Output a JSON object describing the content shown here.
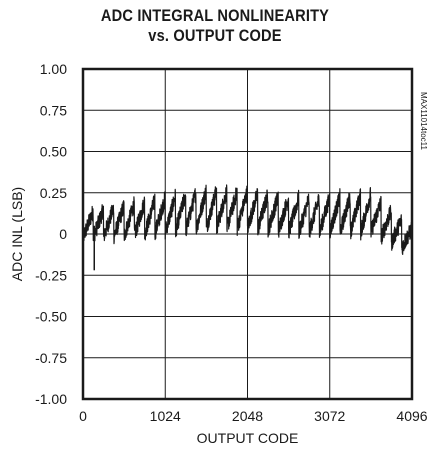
{
  "chart_data": {
    "type": "line",
    "title": [
      "ADC INTEGRAL NONLINEARITY",
      "vs. OUTPUT CODE"
    ],
    "xlabel": "OUTPUT CODE",
    "ylabel": "ADC INL (LSB)",
    "xlim": [
      0,
      4096
    ],
    "ylim": [
      -1.0,
      1.0
    ],
    "x_ticks": [
      0,
      1024,
      2048,
      3072,
      4096
    ],
    "x_tick_labels": [
      "0",
      "1024",
      "2048",
      "3072",
      "4096"
    ],
    "y_ticks": [
      1.0,
      0.75,
      0.5,
      0.25,
      0,
      -0.25,
      -0.5,
      -0.75,
      -1.0
    ],
    "y_tick_labels": [
      "1.00",
      "0.75",
      "0.50",
      "0.25",
      "0",
      "-0.25",
      "-0.50",
      "-0.75",
      "-1.00"
    ],
    "grid": true,
    "watermark": "MAX11014toc11",
    "series": [
      {
        "color": "#1a1a1a",
        "pattern": "sawtooth",
        "period_codes": 128,
        "noise_lsb": 0.05,
        "segment_ranges": [
          {
            "x": 0,
            "min": -0.05,
            "max": 0.15
          },
          {
            "x": 512,
            "min": -0.05,
            "max": 0.2
          },
          {
            "x": 1024,
            "min": -0.03,
            "max": 0.25
          },
          {
            "x": 1536,
            "min": -0.01,
            "max": 0.3
          },
          {
            "x": 2048,
            "min": -0.01,
            "max": 0.29
          },
          {
            "x": 2560,
            "min": -0.03,
            "max": 0.25
          },
          {
            "x": 3072,
            "min": -0.03,
            "max": 0.25
          },
          {
            "x": 3584,
            "min": -0.04,
            "max": 0.28
          },
          {
            "x": 4096,
            "min": -0.15,
            "max": 0.05
          }
        ],
        "outliers": [
          {
            "x": 140,
            "y": -0.22
          }
        ]
      }
    ]
  }
}
